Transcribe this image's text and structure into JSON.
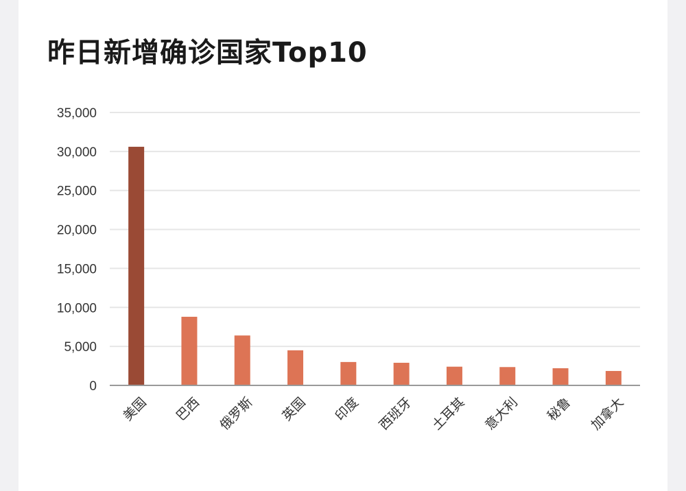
{
  "chart_data": {
    "type": "bar",
    "title": "昨日新增确诊国家Top10",
    "categories": [
      "美国",
      "巴西",
      "俄罗斯",
      "英国",
      "印度",
      "西班牙",
      "土耳其",
      "意大利",
      "秘鲁",
      "加拿大"
    ],
    "values": [
      30600,
      8800,
      6400,
      4500,
      3000,
      2900,
      2400,
      2350,
      2200,
      1850
    ],
    "ylim": [
      0,
      35000
    ],
    "yticks": [
      "0",
      "5,000",
      "10,000",
      "15,000",
      "20,000",
      "25,000",
      "30,000",
      "35,000"
    ],
    "grid": true,
    "colors": {
      "highlight": "#9a4a35",
      "bar": "#dd7455",
      "grid": "#e6e6e6",
      "axis": "#999999"
    }
  }
}
